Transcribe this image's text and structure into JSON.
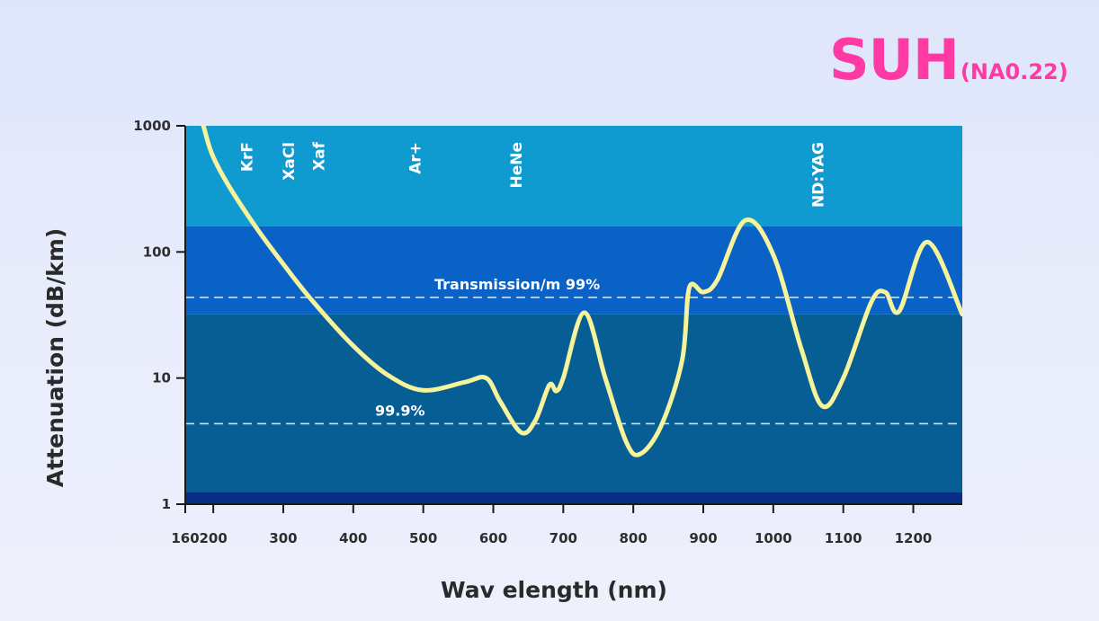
{
  "brand": {
    "main": "SUH",
    "sub": "(NA0.22)",
    "color": "#ff3aa3"
  },
  "chart_data": {
    "type": "line",
    "xlabel": "Wav elength (nm)",
    "ylabel": "Attenuation (dB/km)",
    "xlim": [
      160,
      1270
    ],
    "ylim": [
      1,
      1000
    ],
    "y_scale": "log",
    "x_ticks": [
      160,
      200,
      300,
      400,
      500,
      600,
      700,
      800,
      900,
      1000,
      1100,
      1200
    ],
    "y_ticks": [
      1,
      10,
      100,
      1000
    ],
    "laser_lines": [
      {
        "label": "KrF",
        "x": 248
      },
      {
        "label": "XaCl",
        "x": 308
      },
      {
        "label": "Xaf",
        "x": 351
      },
      {
        "label": "Ar+",
        "x": 488
      },
      {
        "label": "HeNe",
        "x": 633
      },
      {
        "label": "ND:YAG",
        "x": 1064
      }
    ],
    "transmission_lines": [
      {
        "label": "Transmission/m 99%",
        "y": 43.6
      },
      {
        "label": "99.9%",
        "y": 4.35
      }
    ],
    "bands": [
      {
        "y_from": 160,
        "y_to": 1000,
        "color": "#0f9ad0"
      },
      {
        "y_from": 32,
        "y_to": 160,
        "color": "#0a62c6"
      },
      {
        "y_from": 1.25,
        "y_to": 32,
        "color": "#075e95"
      },
      {
        "y_from": 1,
        "y_to": 1.25,
        "color": "#062e86"
      }
    ],
    "series": [
      {
        "color": "#f7f39a",
        "x": [
          186,
          198,
          220,
          260,
          300,
          340,
          400,
          450,
          500,
          560,
          590,
          610,
          640,
          660,
          680,
          690,
          700,
          730,
          760,
          790,
          810,
          840,
          870,
          880,
          900,
          920,
          960,
          1000,
          1040,
          1070,
          1100,
          1140,
          1160,
          1180,
          1220,
          1270
        ],
        "y": [
          1000,
          600,
          350,
          160,
          80,
          42,
          18,
          10.5,
          8,
          9.3,
          10,
          6.5,
          3.7,
          4.6,
          8.8,
          7.9,
          10,
          33,
          10,
          3.1,
          2.5,
          4.2,
          14,
          52,
          48,
          60,
          178,
          95,
          17,
          6,
          10,
          40,
          48,
          34,
          120,
          32
        ]
      }
    ]
  }
}
